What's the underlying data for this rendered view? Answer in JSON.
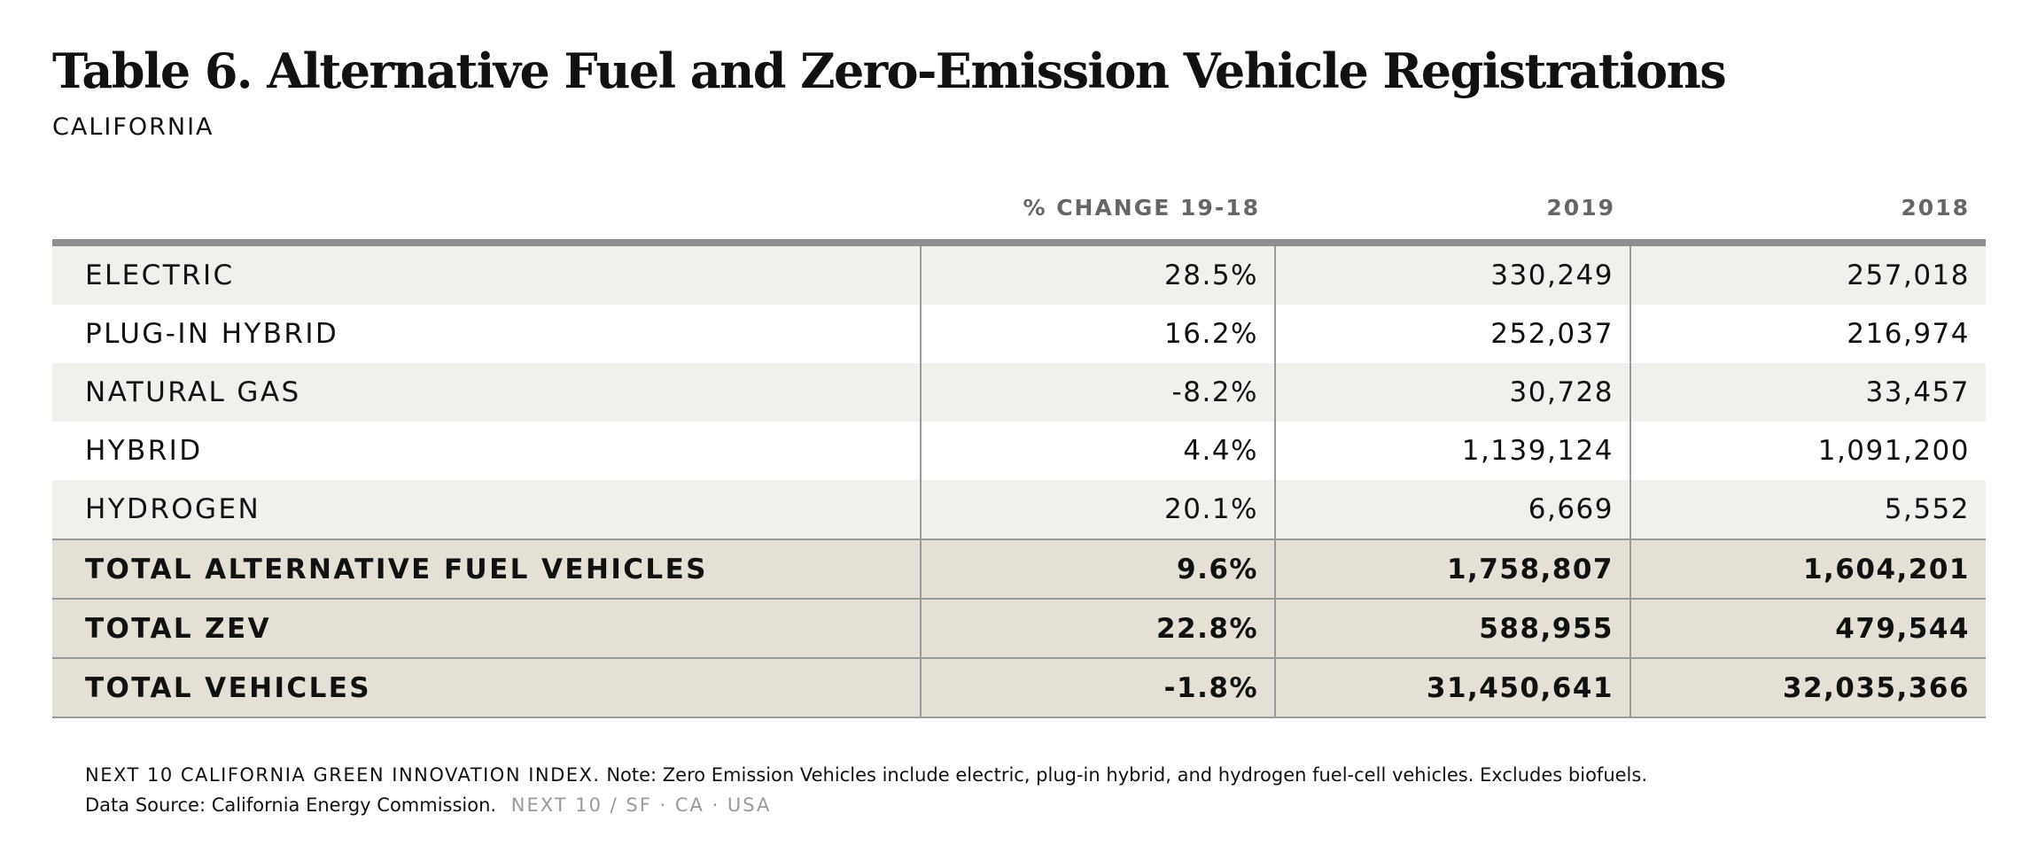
{
  "title": "Table 6. Alternative Fuel and Zero-Emission Vehicle Registrations",
  "subtitle": "CALIFORNIA",
  "columns": {
    "change": "% CHANGE 19-18",
    "y2019": "2019",
    "y2018": "2018"
  },
  "rows": [
    {
      "label": "ELECTRIC",
      "change": "28.5%",
      "y2019": "330,249",
      "y2018": "257,018"
    },
    {
      "label": "PLUG-IN HYBRID",
      "change": "16.2%",
      "y2019": "252,037",
      "y2018": "216,974"
    },
    {
      "label": "NATURAL GAS",
      "change": "-8.2%",
      "y2019": "30,728",
      "y2018": "33,457"
    },
    {
      "label": "HYBRID",
      "change": "4.4%",
      "y2019": "1,139,124",
      "y2018": "1,091,200"
    },
    {
      "label": "HYDROGEN",
      "change": "20.1%",
      "y2019": "6,669",
      "y2018": "5,552"
    }
  ],
  "totals": [
    {
      "label": "TOTAL ALTERNATIVE FUEL VEHICLES",
      "change": "9.6%",
      "y2019": "1,758,807",
      "y2018": "1,604,201"
    },
    {
      "label": "TOTAL ZEV",
      "change": "22.8%",
      "y2019": "588,955",
      "y2018": "479,544"
    },
    {
      "label": "TOTAL VEHICLES",
      "change": "-1.8%",
      "y2019": "31,450,641",
      "y2018": "32,035,366"
    }
  ],
  "footer": {
    "index_name": "NEXT 10 CALIFORNIA GREEN INNOVATION INDEX.",
    "note": "Note: Zero Emission Vehicles include electric, plug-in hybrid, and hydrogen fuel-cell vehicles. Excludes biofuels.",
    "source": "Data Source: California Energy Commission.",
    "brand": "NEXT 10  /  SF · CA · USA"
  },
  "colors": {
    "row_alt": "#f2f0ec",
    "row_total": "#e5e0d6",
    "rule": "#8f8f8f",
    "header_text": "#666666",
    "brand_text": "#999999"
  }
}
